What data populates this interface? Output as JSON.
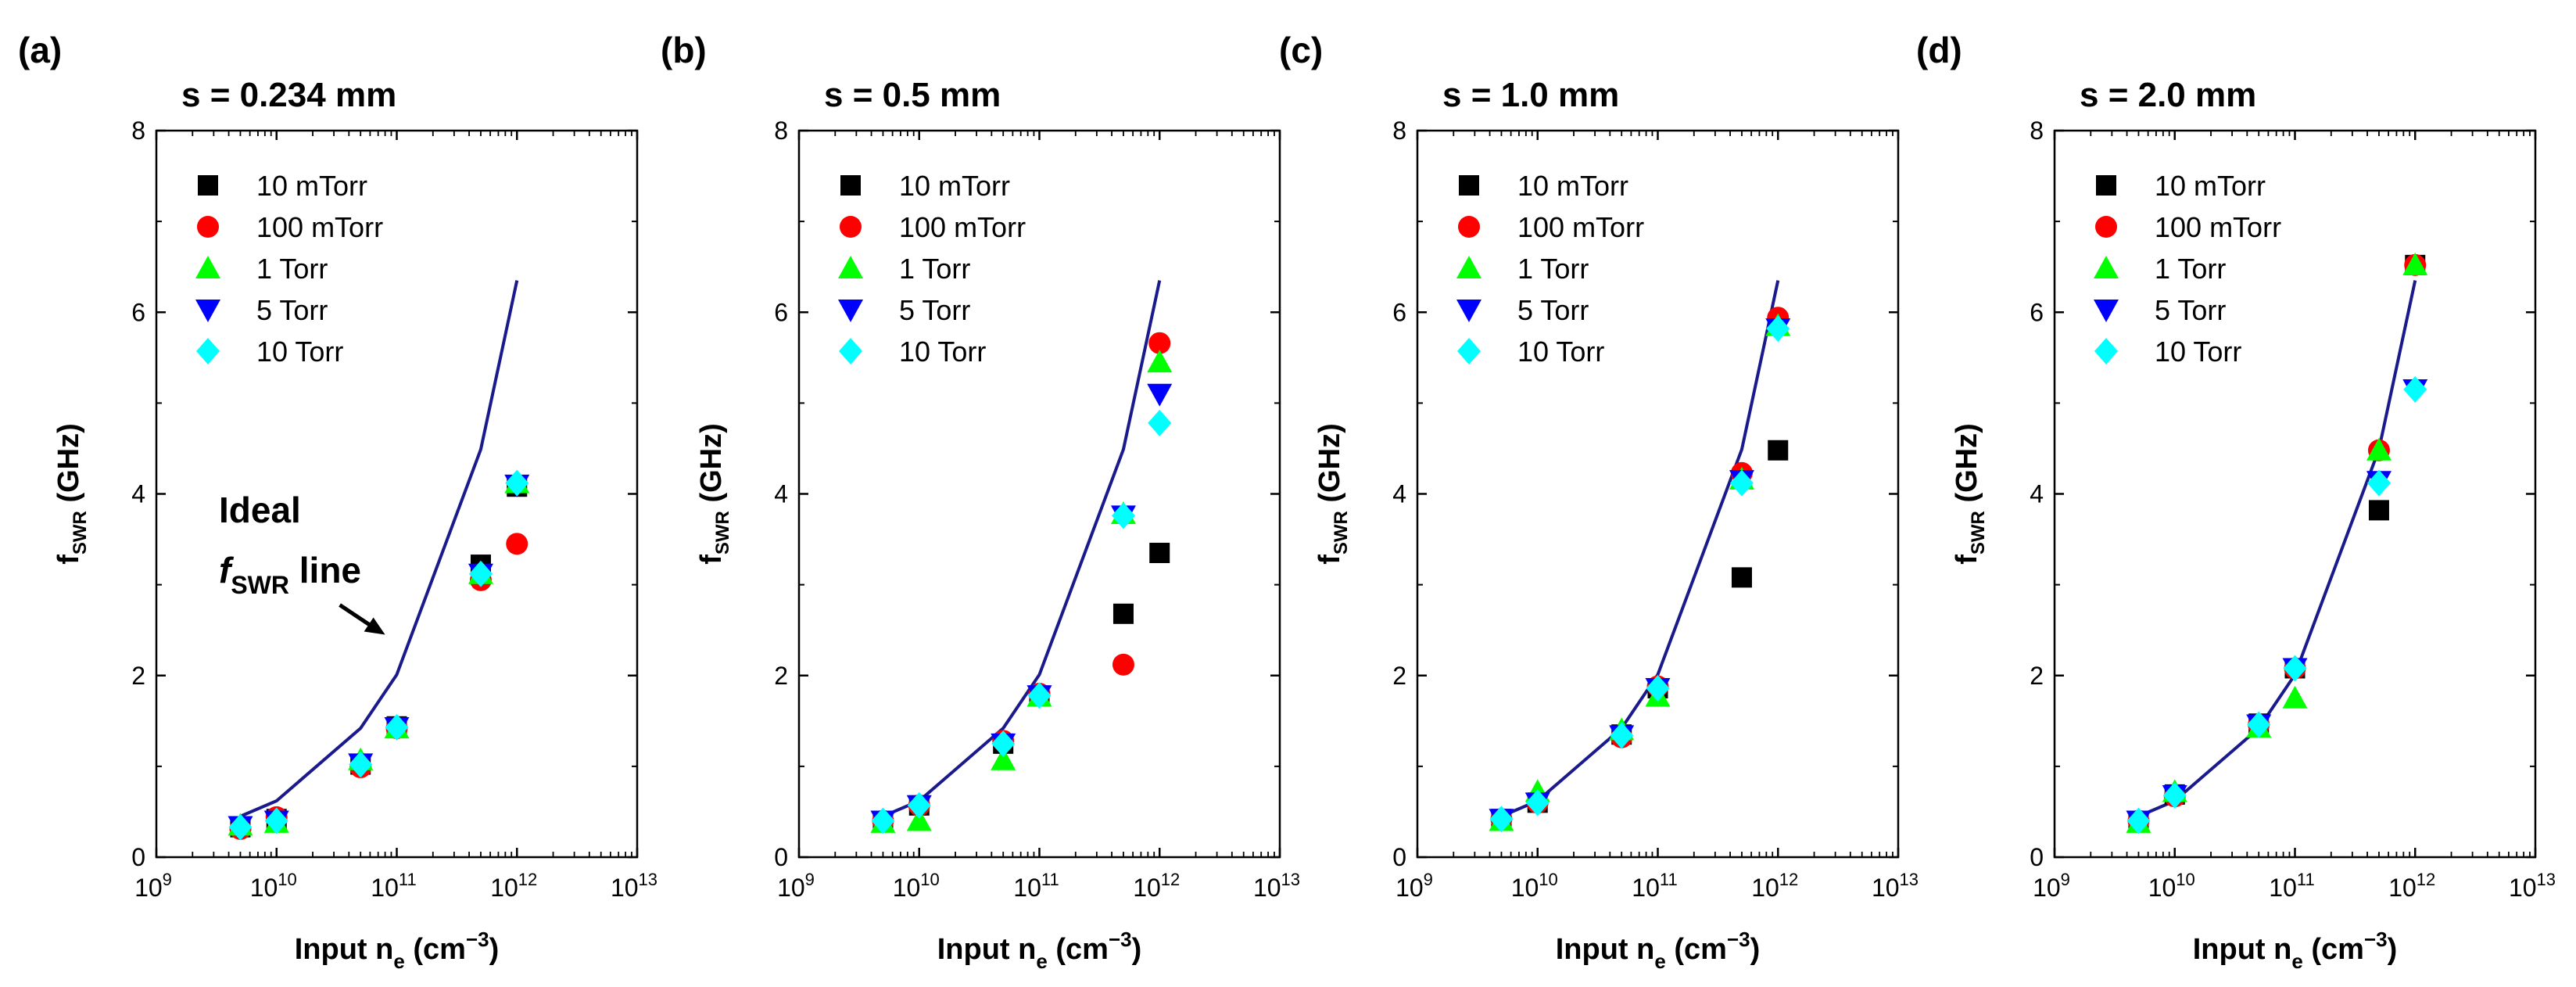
{
  "chart_data": {
    "shared": {
      "type": "scatter",
      "xlabel_main": "Input n",
      "xlabel_sub": "e",
      "xlabel_unit": " (cm",
      "xlabel_sup": "−3",
      "xlabel_close": ")",
      "ylabel_main": "f",
      "ylabel_sub": "SWR",
      "ylabel_unit": " (GHz)",
      "x_scale": "log",
      "xlim": [
        1000000000.0,
        10000000000000.0
      ],
      "ylim": [
        0,
        8
      ],
      "x_ticks": [
        {
          "v": 1000000000.0,
          "base": "10",
          "exp": "9"
        },
        {
          "v": 10000000000.0,
          "base": "10",
          "exp": "10"
        },
        {
          "v": 100000000000.0,
          "base": "10",
          "exp": "11"
        },
        {
          "v": 1000000000000.0,
          "base": "10",
          "exp": "12"
        },
        {
          "v": 10000000000000.0,
          "base": "10",
          "exp": "13"
        }
      ],
      "y_ticks": [
        0,
        2,
        4,
        6,
        8
      ],
      "ideal_line": {
        "x": [
          5000000000.0,
          10000000000.0,
          50000000000.0,
          100000000000.0,
          500000000000.0,
          1000000000000.0
        ],
        "y": [
          0.45,
          0.62,
          1.42,
          2.01,
          4.49,
          6.35
        ],
        "color": "#1a1a8c"
      },
      "series_styles": [
        {
          "name": "10 mTorr",
          "marker": "square",
          "color": "#000000"
        },
        {
          "name": "100 mTorr",
          "marker": "circle",
          "color": "#ff0000"
        },
        {
          "name": "1 Torr",
          "marker": "triangle-up",
          "color": "#00ff00"
        },
        {
          "name": "5 Torr",
          "marker": "triangle-down",
          "color": "#0000ff"
        },
        {
          "name": "10 Torr",
          "marker": "diamond",
          "color": "#00ffff"
        }
      ]
    },
    "panels": [
      {
        "letter": "(a)",
        "title": "s = 0.234 mm",
        "x": [
          5000000000.0,
          10000000000.0,
          50000000000.0,
          100000000000.0,
          500000000000.0,
          1000000000000.0
        ],
        "series": [
          {
            "name": "10 mTorr",
            "values": [
              0.33,
              0.42,
              1.02,
              1.44,
              3.22,
              4.08
            ]
          },
          {
            "name": "100 mTorr",
            "values": [
              0.31,
              0.44,
              0.99,
              1.42,
              3.05,
              3.45
            ]
          },
          {
            "name": "1 Torr",
            "values": [
              0.35,
              0.38,
              1.07,
              1.42,
              3.12,
              4.12
            ]
          },
          {
            "name": "5 Torr",
            "values": [
              0.34,
              0.4,
              1.03,
              1.43,
              3.12,
              4.1
            ]
          },
          {
            "name": "10 Torr",
            "values": [
              0.33,
              0.4,
              1.02,
              1.43,
              3.12,
              4.12
            ]
          }
        ],
        "annotation": {
          "line1": "Ideal",
          "line2_italic": "f",
          "line2_sub": "SWR",
          "line2_rest": " line",
          "arrow_to": {
            "x": 80000000000.0,
            "y": 2.45
          }
        }
      },
      {
        "letter": "(b)",
        "title": "s = 0.5 mm",
        "x": [
          5000000000.0,
          10000000000.0,
          50000000000.0,
          100000000000.0,
          500000000000.0,
          1000000000000.0
        ],
        "series": [
          {
            "name": "10 mTorr",
            "values": [
              0.4,
              0.57,
              1.25,
              1.78,
              2.68,
              3.35
            ]
          },
          {
            "name": "100 mTorr",
            "values": [
              0.4,
              0.57,
              1.28,
              1.8,
              2.12,
              5.66
            ]
          },
          {
            "name": "1 Torr",
            "values": [
              0.38,
              0.4,
              1.07,
              1.77,
              3.78,
              5.45
            ]
          },
          {
            "name": "5 Torr",
            "values": [
              0.4,
              0.57,
              1.25,
              1.78,
              3.76,
              5.1
            ]
          },
          {
            "name": "10 Torr",
            "values": [
              0.4,
              0.57,
              1.25,
              1.78,
              3.76,
              4.78
            ]
          }
        ]
      },
      {
        "letter": "(c)",
        "title": "s = 1.0 mm",
        "x": [
          5000000000.0,
          10000000000.0,
          50000000000.0,
          100000000000.0,
          500000000000.0,
          1000000000000.0
        ],
        "series": [
          {
            "name": "10 mTorr",
            "values": [
              0.42,
              0.6,
              1.35,
              1.86,
              3.08,
              4.48
            ]
          },
          {
            "name": "100 mTorr",
            "values": [
              0.42,
              0.6,
              1.32,
              1.88,
              4.23,
              5.94
            ]
          },
          {
            "name": "1 Torr",
            "values": [
              0.4,
              0.72,
              1.4,
              1.77,
              4.16,
              5.85
            ]
          },
          {
            "name": "5 Torr",
            "values": [
              0.42,
              0.6,
              1.34,
              1.86,
              4.15,
              5.82
            ]
          },
          {
            "name": "10 Torr",
            "values": [
              0.42,
              0.6,
              1.34,
              1.86,
              4.12,
              5.82
            ]
          }
        ]
      },
      {
        "letter": "(d)",
        "title": "s = 2.0 mm",
        "x": [
          5000000000.0,
          10000000000.0,
          50000000000.0,
          100000000000.0,
          500000000000.0,
          1000000000000.0
        ],
        "series": [
          {
            "name": "10 mTorr",
            "values": [
              0.4,
              0.69,
              1.47,
              2.08,
              3.82,
              6.52
            ]
          },
          {
            "name": "100 mTorr",
            "values": [
              0.4,
              0.67,
              1.46,
              2.08,
              4.48,
              6.52
            ]
          },
          {
            "name": "1 Torr",
            "values": [
              0.38,
              0.72,
              1.43,
              1.75,
              4.48,
              6.52
            ]
          },
          {
            "name": "5 Torr",
            "values": [
              0.4,
              0.68,
              1.46,
              2.08,
              4.14,
              5.15
            ]
          },
          {
            "name": "10 Torr",
            "values": [
              0.4,
              0.68,
              1.46,
              2.08,
              4.12,
              5.15
            ]
          }
        ]
      }
    ]
  }
}
